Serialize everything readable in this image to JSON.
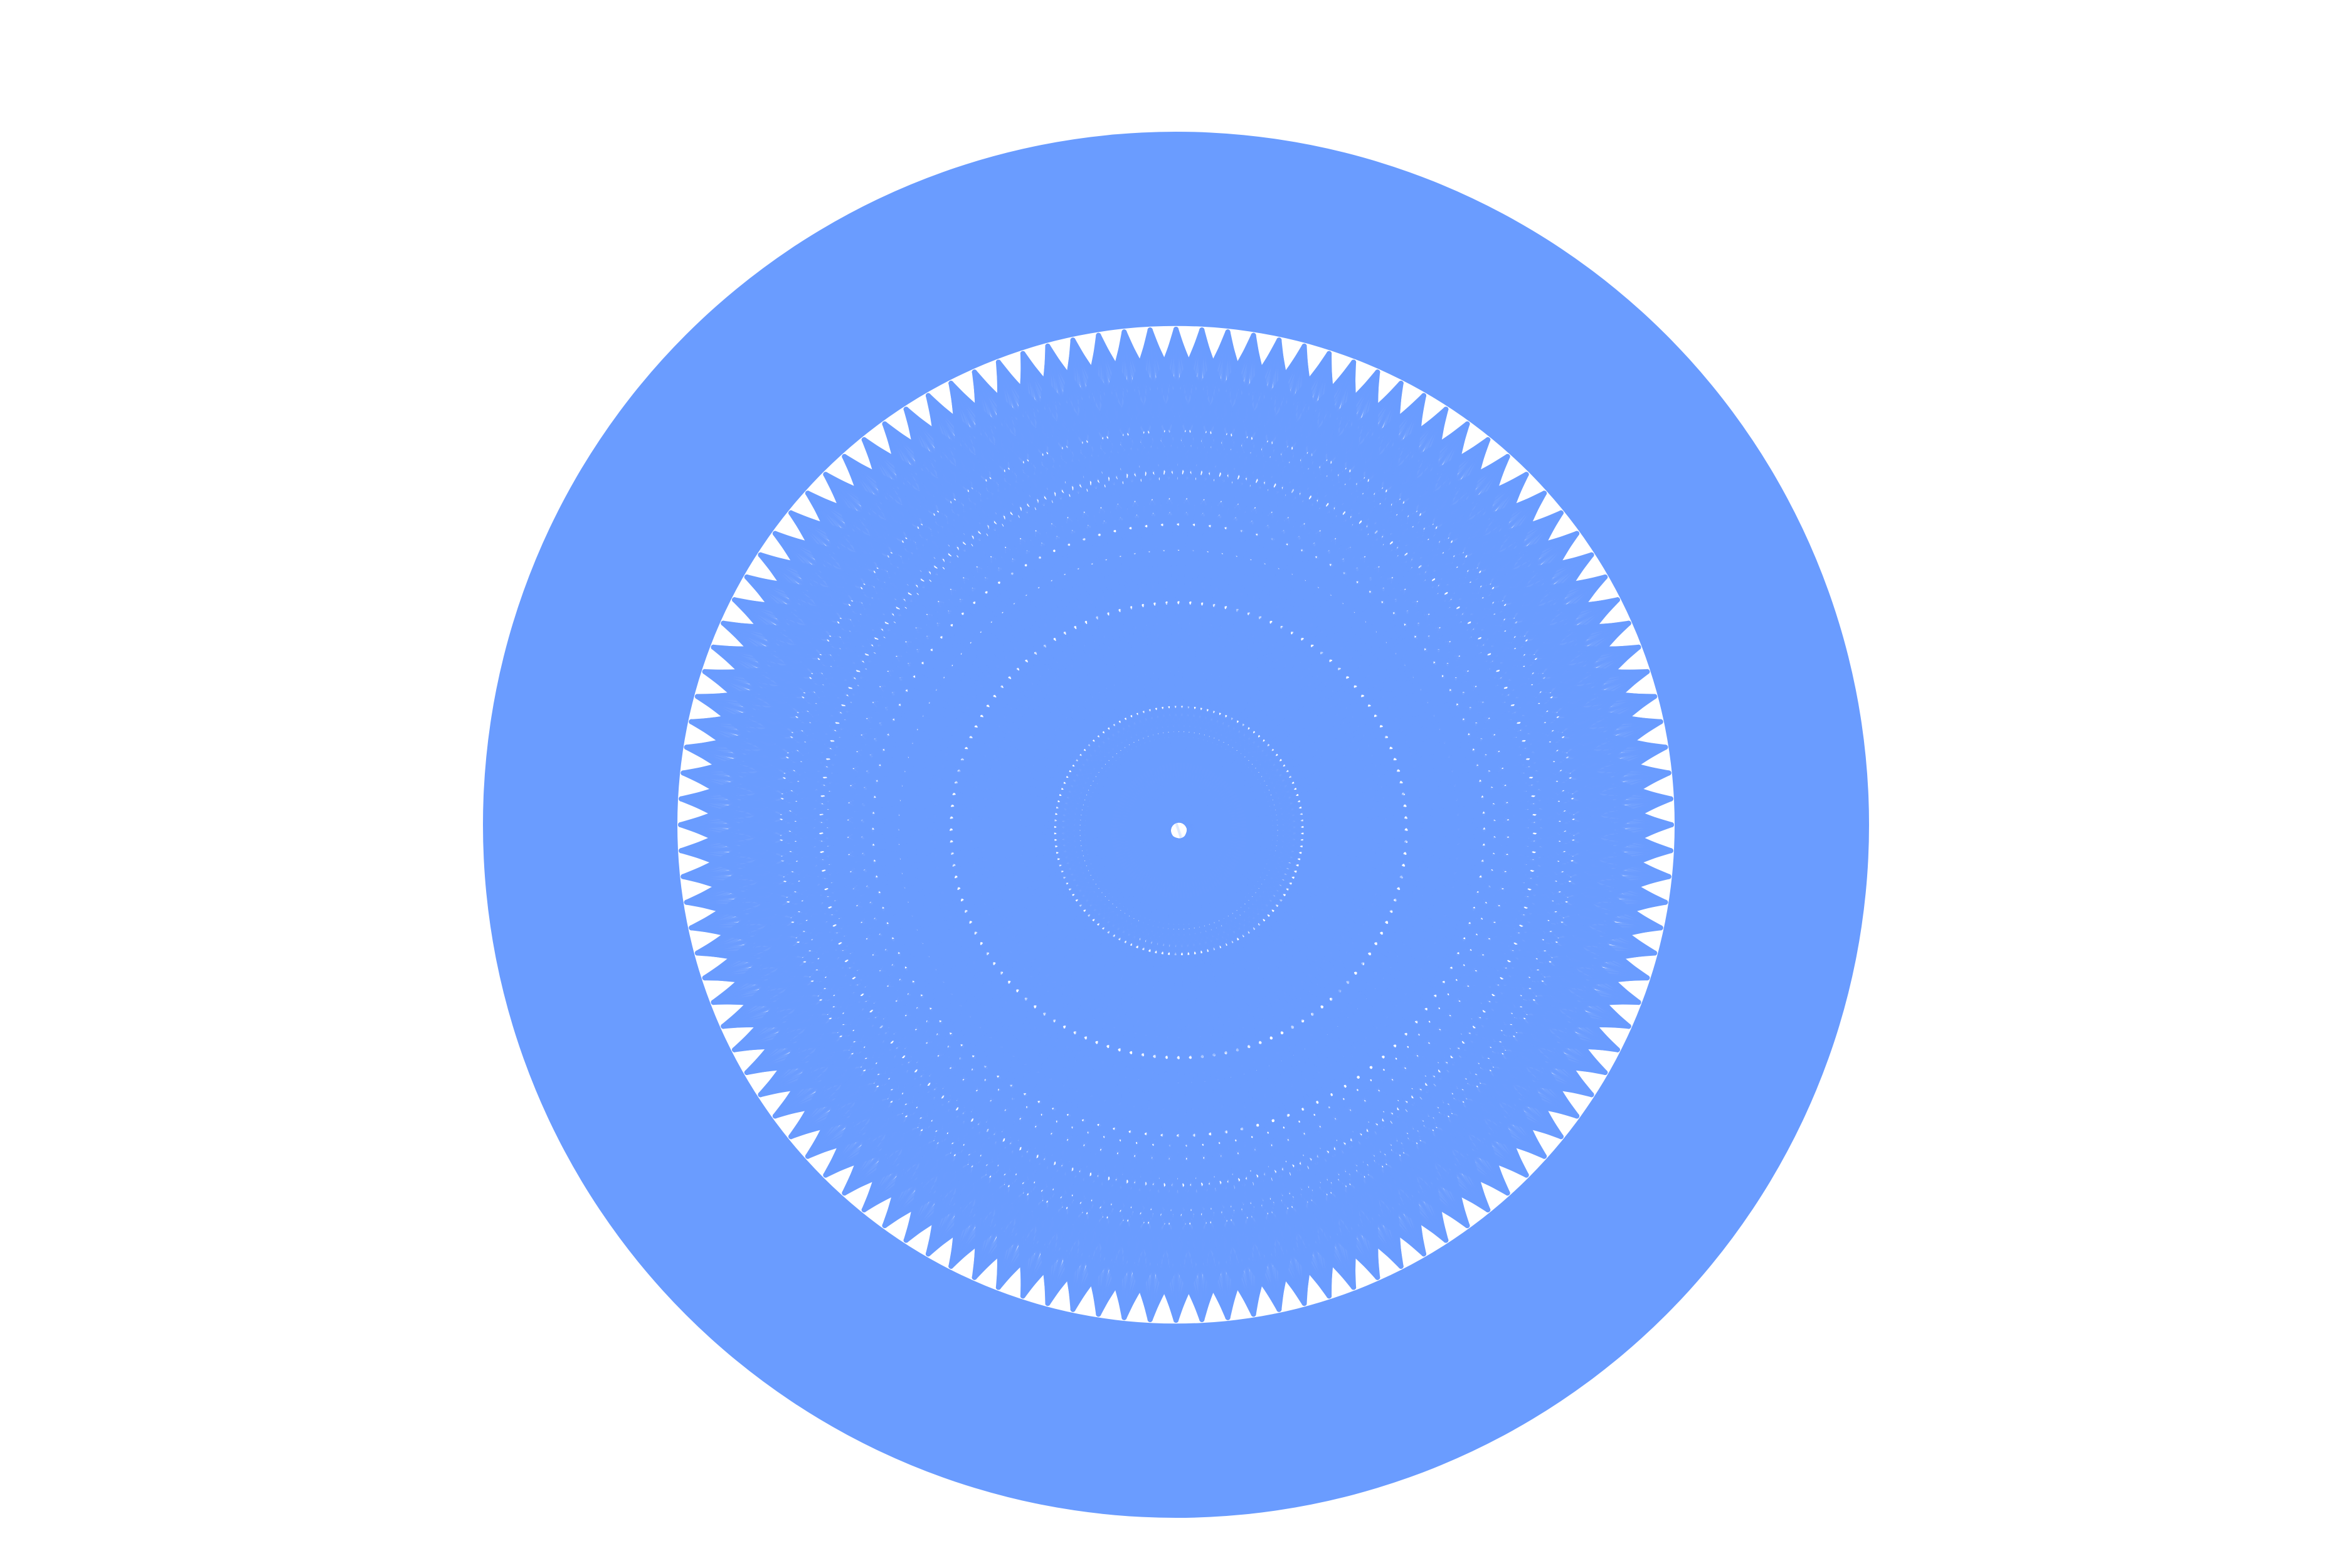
{
  "figure": {
    "type": "circular-chord-network",
    "background_color": "#ffffff",
    "accent_color": "#6a9cff"
  },
  "network": {
    "node_count": 120,
    "ring_color": "#6a9cff",
    "edge_color": "#6a9cff",
    "chord_offsets": [
      27,
      31,
      35,
      39,
      43,
      47,
      53,
      59
    ],
    "long_chord_count": 90,
    "long_chord_opacity_range": [
      0.08,
      0.6
    ],
    "interior_hub_color": "#6a9cff"
  }
}
